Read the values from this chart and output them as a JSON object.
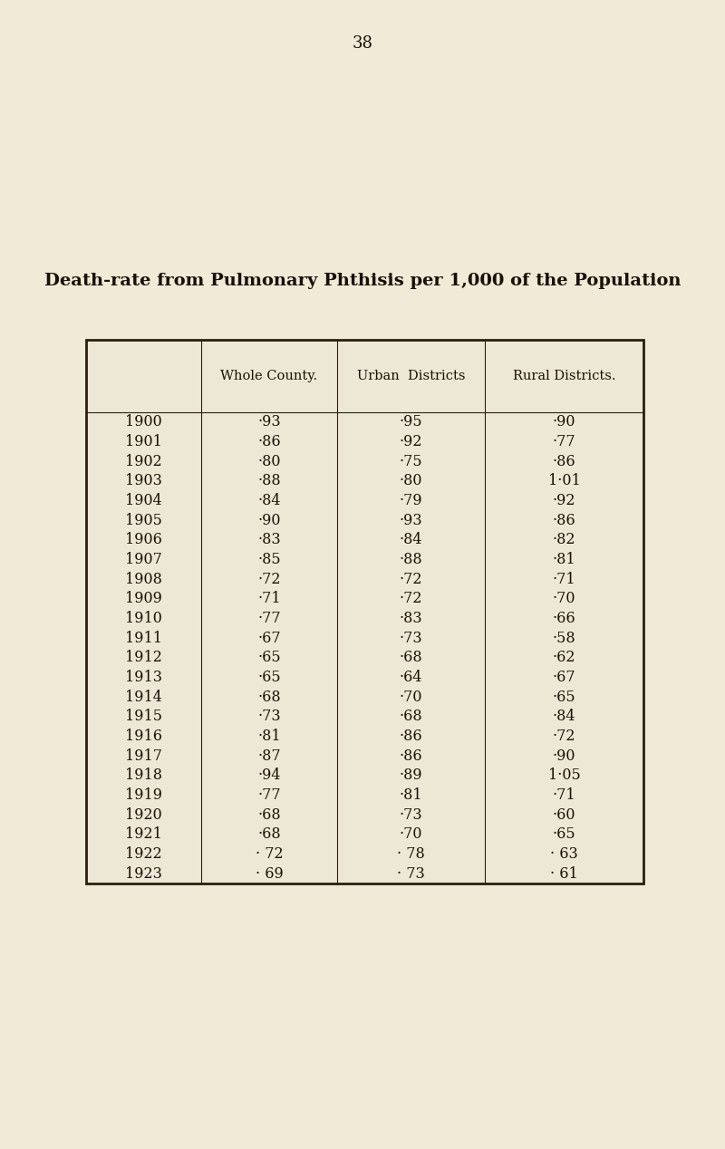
{
  "title": "Death-rate from Pulmonary Phthisis per 1,000 of the Population",
  "page_number": "38",
  "background_color": "#f0ead6",
  "col_headers": [
    "",
    "Whole County.",
    "Urban  Districts",
    "Rural Districts."
  ],
  "rows": [
    [
      "1900",
      "·93",
      "·95",
      "·90"
    ],
    [
      "1901",
      "·86",
      "·92",
      "·77"
    ],
    [
      "1902",
      "·80",
      "·75",
      "·86"
    ],
    [
      "1903",
      "·88",
      "·80",
      "1·01"
    ],
    [
      "1904",
      "·84",
      "·79",
      "·92"
    ],
    [
      "1905",
      "·90",
      "·93",
      "·86"
    ],
    [
      "1906",
      "·83",
      "·84",
      "·82"
    ],
    [
      "1907",
      "·85",
      "·88",
      "·81"
    ],
    [
      "1908",
      "·72",
      "·72",
      "·71"
    ],
    [
      "1909",
      "·71",
      "·72",
      "·70"
    ],
    [
      "1910",
      "·77",
      "·83",
      "·66"
    ],
    [
      "1911",
      "·67",
      "·73",
      "·58"
    ],
    [
      "1912",
      "·65",
      "·68",
      "·62"
    ],
    [
      "1913",
      "·65",
      "·64",
      "·67"
    ],
    [
      "1914",
      "·68",
      "·70",
      "·65"
    ],
    [
      "1915",
      "·73",
      "·68",
      "·84"
    ],
    [
      "1916",
      "·81",
      "·86",
      "·72"
    ],
    [
      "1917",
      "·87",
      "·86",
      "·90"
    ],
    [
      "1918",
      "·94",
      "·89",
      "1·05"
    ],
    [
      "1919",
      "·77",
      "·81",
      "·71"
    ],
    [
      "1920",
      "·68",
      "·73",
      "·60"
    ],
    [
      "1921",
      "·68",
      "·70",
      "·65"
    ],
    [
      "1922",
      "· 72",
      "· 78",
      "· 63"
    ],
    [
      "1923",
      "· 69",
      "· 73",
      "· 61"
    ]
  ],
  "title_fontsize": 14,
  "header_fontsize": 10.5,
  "data_fontsize": 11.5,
  "page_num_fontsize": 13,
  "text_color": "#1a1008",
  "table_border_color": "#2a1f0a",
  "table_bg": "#ede8d5",
  "fig_width": 8.0,
  "fig_height": 12.68,
  "dpi": 100
}
